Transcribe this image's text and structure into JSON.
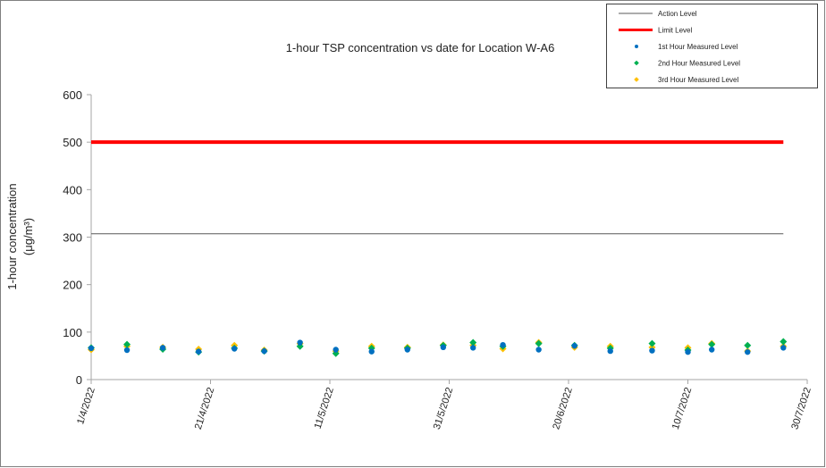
{
  "chart_data": {
    "type": "scatter",
    "title": "1-hour TSP concentration vs date for Location  W-A6",
    "y_label": "1-hour concentration",
    "y_unit": "(μg/m³)",
    "xlim": [
      "1/4/2022",
      "30/7/2022"
    ],
    "xticks": [
      "1/4/2022",
      "21/4/2022",
      "11/5/2022",
      "31/5/2022",
      "20/6/2022",
      "10/7/2022",
      "30/7/2022"
    ],
    "ylim": [
      0,
      600
    ],
    "yticks": [
      0,
      100,
      200,
      300,
      400,
      500,
      600
    ],
    "x": [
      "1/4/2022",
      "7/4/2022",
      "13/4/2022",
      "19/4/2022",
      "25/4/2022",
      "30/4/2022",
      "6/5/2022",
      "12/5/2022",
      "18/5/2022",
      "24/5/2022",
      "30/5/2022",
      "4/6/2022",
      "9/6/2022",
      "15/6/2022",
      "21/6/2022",
      "27/6/2022",
      "4/7/2022",
      "10/7/2022",
      "14/7/2022",
      "20/7/2022",
      "26/7/2022"
    ],
    "lines": [
      {
        "name": "Action Level",
        "color": "#595959",
        "width": 1,
        "x": [
          "1/4/2022",
          "26/7/2022"
        ],
        "values": [
          307,
          307
        ]
      },
      {
        "name": "Limit Level",
        "color": "#ff0000",
        "width": 4,
        "x": [
          "1/4/2022",
          "26/7/2022"
        ],
        "values": [
          500,
          500
        ]
      }
    ],
    "series": [
      {
        "name": "1st Hour Measured Level",
        "color": "#0070c0",
        "marker": "circle",
        "values": [
          66,
          62,
          67,
          59,
          65,
          60,
          78,
          63,
          59,
          63,
          68,
          67,
          73,
          63,
          71,
          60,
          61,
          58,
          63,
          58,
          67
        ]
      },
      {
        "name": "2nd Hour Measured Level",
        "color": "#00b050",
        "marker": "diamond",
        "values": [
          67,
          74,
          64,
          58,
          66,
          60,
          70,
          55,
          66,
          66,
          72,
          78,
          70,
          76,
          72,
          66,
          76,
          62,
          74,
          72,
          80
        ]
      },
      {
        "name": "3rd Hour Measured Level",
        "color": "#ffc000",
        "marker": "diamond",
        "values": [
          63,
          70,
          68,
          64,
          72,
          62,
          76,
          60,
          70,
          68,
          73,
          72,
          65,
          78,
          68,
          70,
          68,
          67,
          76,
          60,
          70
        ]
      }
    ]
  }
}
